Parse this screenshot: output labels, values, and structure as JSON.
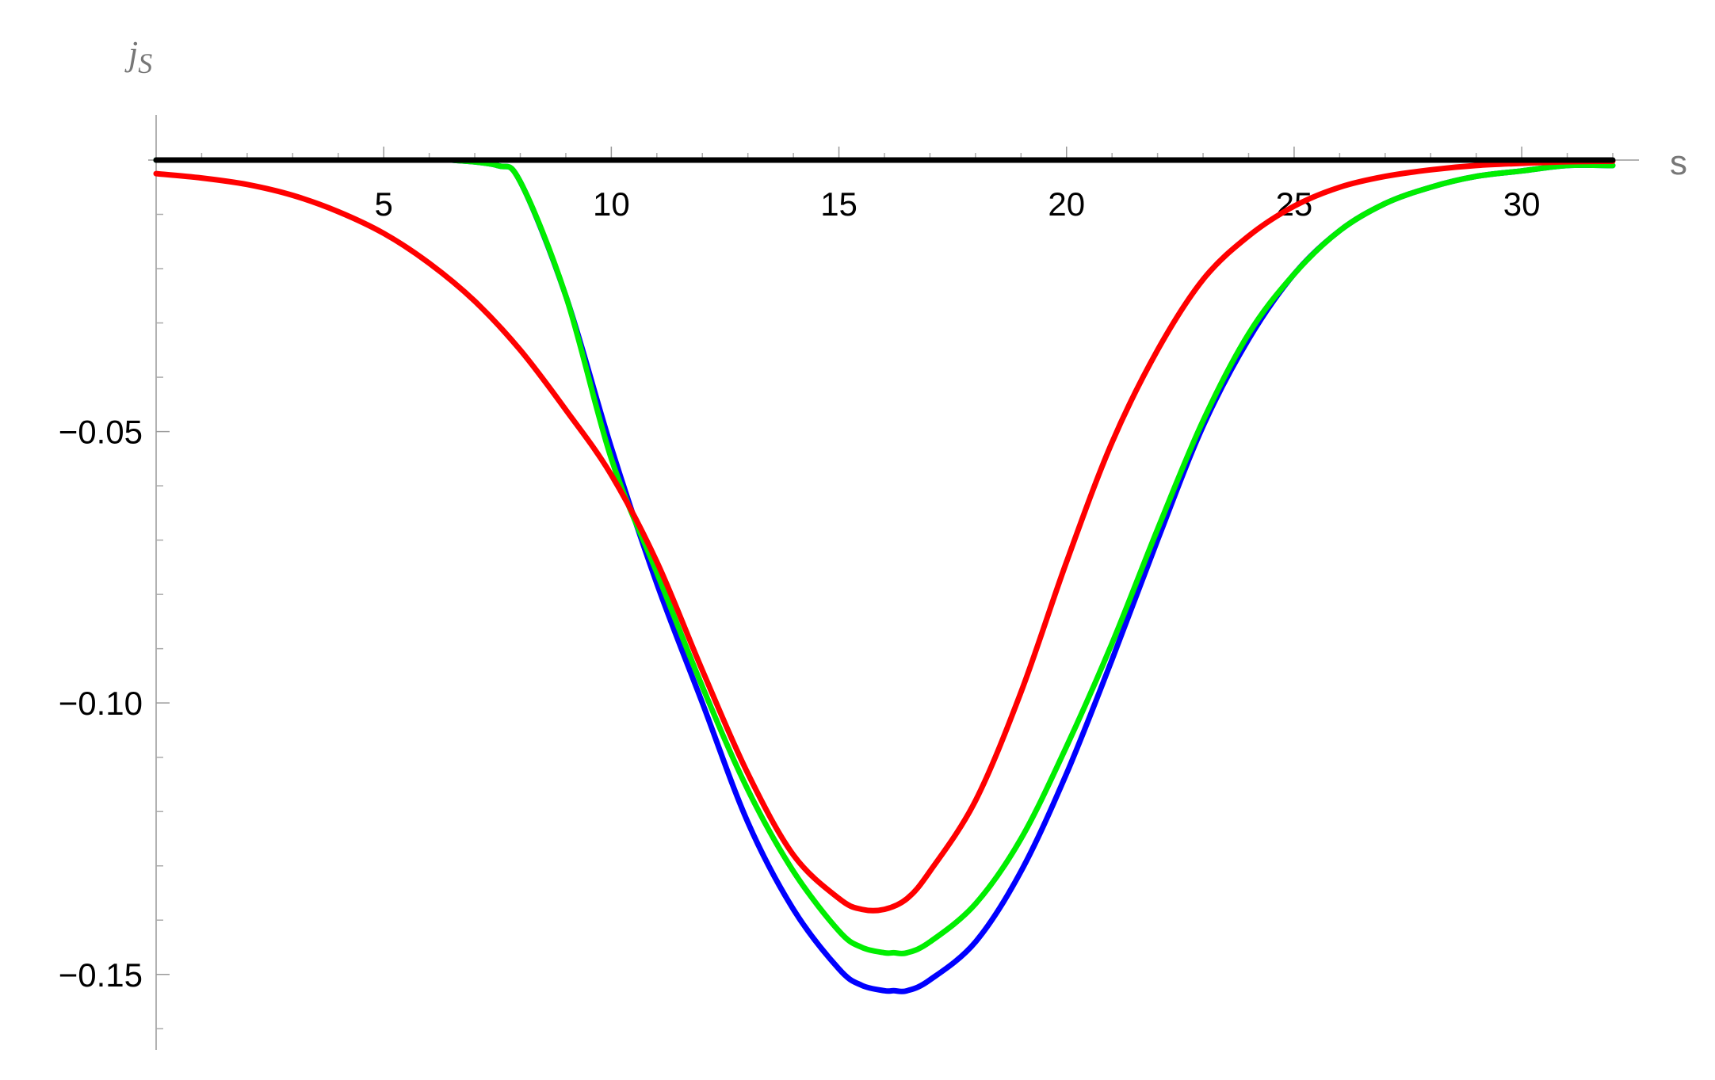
{
  "chart_data": {
    "type": "line",
    "title": "",
    "xlabel": "s",
    "ylabel": {
      "main": "j",
      "sub": "S"
    },
    "xlim": [
      0,
      32
    ],
    "ylim": [
      -0.162,
      0.0
    ],
    "xticks": [
      5,
      10,
      15,
      20,
      25,
      30
    ],
    "xtick_labels": [
      "5",
      "10",
      "15",
      "20",
      "25",
      "30"
    ],
    "yticks": [
      -0.05,
      -0.1,
      -0.15
    ],
    "ytick_labels": [
      "−0.05",
      "−0.10",
      "−0.15"
    ],
    "grid": false,
    "series": [
      {
        "color": "#000000",
        "x": [
          0,
          32
        ],
        "y": [
          0,
          0
        ]
      },
      {
        "color": "#0000ff",
        "x": [
          6.5,
          7.5,
          8.0,
          9.0,
          10.0,
          11.0,
          12.0,
          13.0,
          14.0,
          15.0,
          15.5,
          16.0,
          16.2,
          16.5,
          17.0,
          18.0,
          19.0,
          20.0,
          21.0,
          22.0,
          23.0,
          24.0,
          25.0,
          26.0,
          27.0,
          28.0,
          29.0,
          30.0,
          31.0,
          32.0
        ],
        "y": [
          0.0,
          -0.001,
          -0.004,
          -0.025,
          -0.053,
          -0.078,
          -0.1,
          -0.122,
          -0.138,
          -0.149,
          -0.152,
          -0.153,
          -0.153,
          -0.153,
          -0.151,
          -0.144,
          -0.131,
          -0.113,
          -0.092,
          -0.07,
          -0.049,
          -0.033,
          -0.021,
          -0.013,
          -0.008,
          -0.005,
          -0.003,
          -0.002,
          -0.001,
          -0.001
        ]
      },
      {
        "color": "#00ee00",
        "x": [
          6.5,
          7.5,
          8.0,
          9.0,
          10.0,
          11.0,
          12.0,
          13.0,
          14.0,
          15.0,
          15.5,
          16.0,
          16.2,
          16.5,
          17.0,
          18.0,
          19.0,
          20.0,
          21.0,
          22.0,
          23.0,
          24.0,
          25.0,
          26.0,
          27.0,
          28.0,
          29.0,
          30.0,
          31.0,
          32.0
        ],
        "y": [
          0.0,
          -0.001,
          -0.004,
          -0.025,
          -0.055,
          -0.076,
          -0.097,
          -0.116,
          -0.131,
          -0.142,
          -0.145,
          -0.146,
          -0.146,
          -0.146,
          -0.144,
          -0.137,
          -0.125,
          -0.108,
          -0.089,
          -0.068,
          -0.048,
          -0.032,
          -0.021,
          -0.013,
          -0.008,
          -0.005,
          -0.003,
          -0.002,
          -0.001,
          -0.001
        ]
      },
      {
        "color": "#ff0000",
        "x": [
          0,
          1,
          2,
          3,
          4,
          5,
          6,
          7,
          8,
          9,
          10,
          11,
          12,
          13,
          14,
          15,
          15.5,
          16.0,
          16.5,
          17,
          18,
          19,
          20,
          21,
          22,
          23,
          24,
          25,
          26,
          27,
          28,
          29,
          30,
          31,
          32
        ],
        "y": [
          -0.0025,
          -0.0033,
          -0.0045,
          -0.0065,
          -0.0095,
          -0.0135,
          -0.019,
          -0.026,
          -0.035,
          -0.046,
          -0.058,
          -0.074,
          -0.094,
          -0.113,
          -0.128,
          -0.136,
          -0.138,
          -0.138,
          -0.136,
          -0.131,
          -0.118,
          -0.098,
          -0.074,
          -0.052,
          -0.035,
          -0.022,
          -0.014,
          -0.0085,
          -0.005,
          -0.003,
          -0.0018,
          -0.001,
          -0.0006,
          -0.0003,
          -0.0002
        ]
      }
    ]
  }
}
